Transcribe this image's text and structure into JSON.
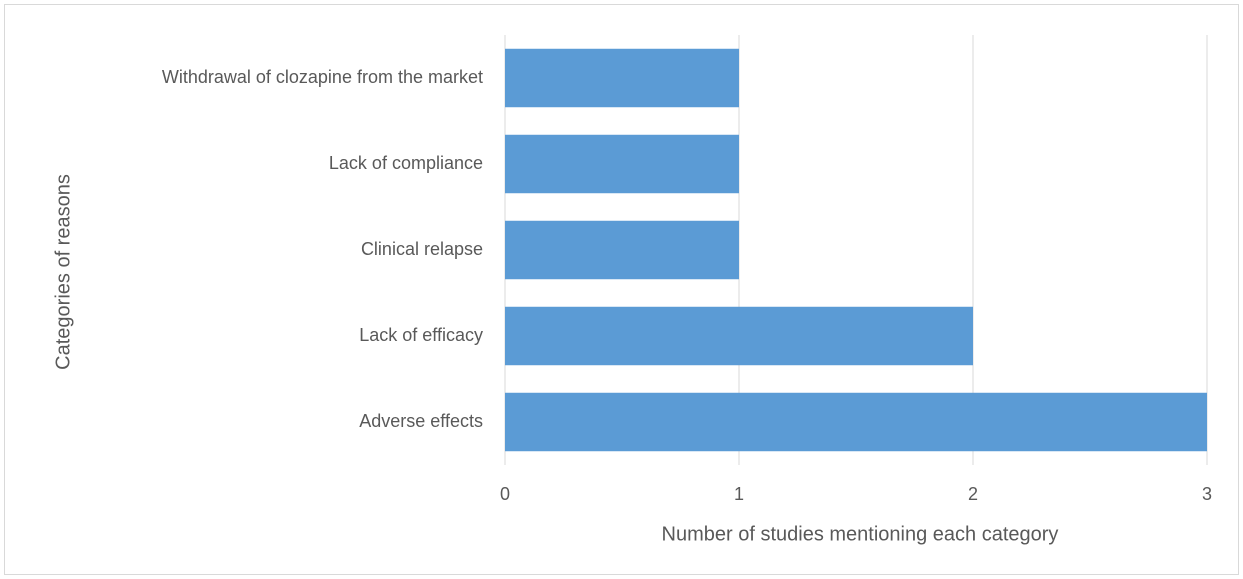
{
  "chart_data": {
    "type": "barh",
    "categories": [
      "Adverse effects",
      "Lack of efficacy",
      "Clinical relapse",
      "Lack of compliance",
      "Withdrawal of clozapine from the market"
    ],
    "values": [
      3,
      2,
      1,
      1,
      1
    ],
    "color": "#5b9bd5",
    "xlim": [
      0,
      3
    ],
    "xticks": [
      0,
      1,
      2,
      3
    ],
    "xlabel": "Number of studies mentioning each category",
    "ylabel": "Categories of reasons",
    "grid": true
  }
}
